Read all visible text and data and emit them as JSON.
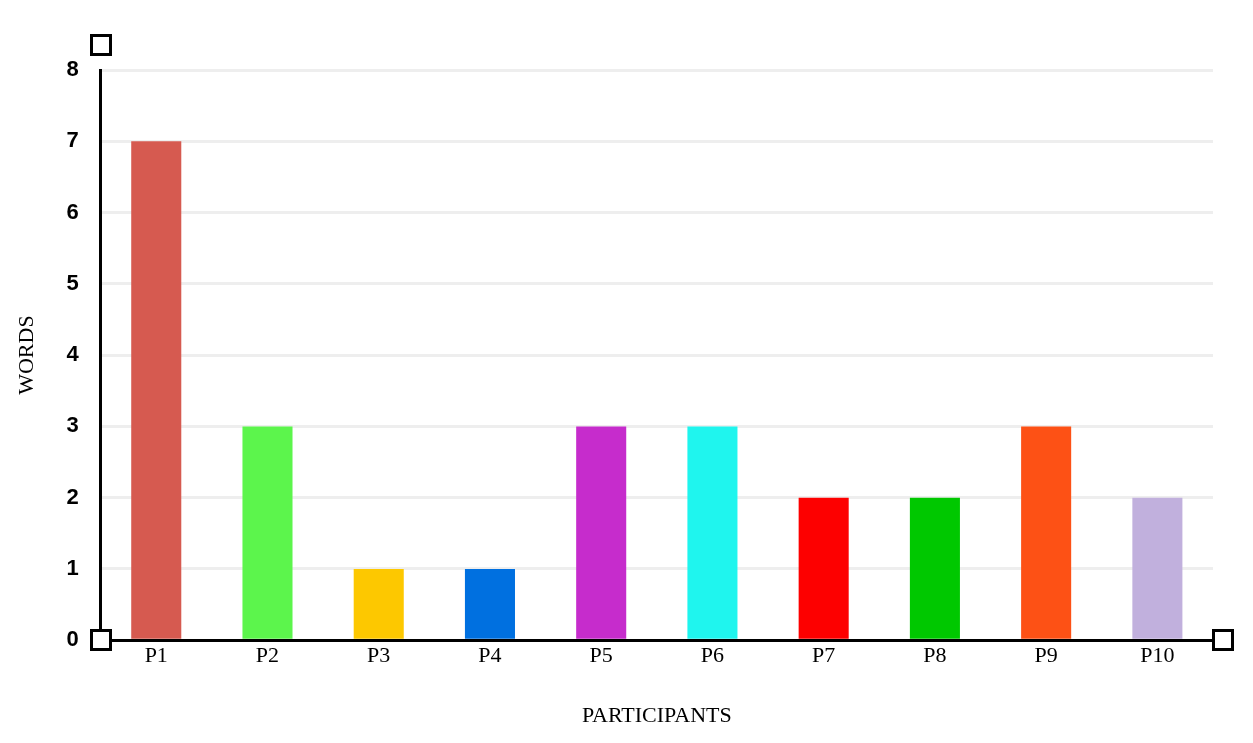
{
  "chart_data": {
    "type": "bar",
    "xlabel": "PARTICIPANTS",
    "ylabel": "WORDS",
    "categories": [
      "P1",
      "P2",
      "P3",
      "P4",
      "P5",
      "P6",
      "P7",
      "P8",
      "P9",
      "P10"
    ],
    "values": [
      7,
      3,
      1,
      1,
      3,
      3,
      2,
      2,
      3,
      2
    ],
    "colors": [
      "#d65a50",
      "#5cf54c",
      "#fdc800",
      "#0070e0",
      "#c62ccc",
      "#1ff5ee",
      "#fd0000",
      "#00c800",
      "#fd5115",
      "#c1b0dd"
    ],
    "ylim": [
      0,
      8
    ],
    "yticks": [
      0,
      1,
      2,
      3,
      4,
      5,
      6,
      7,
      8
    ],
    "grid": "y"
  }
}
